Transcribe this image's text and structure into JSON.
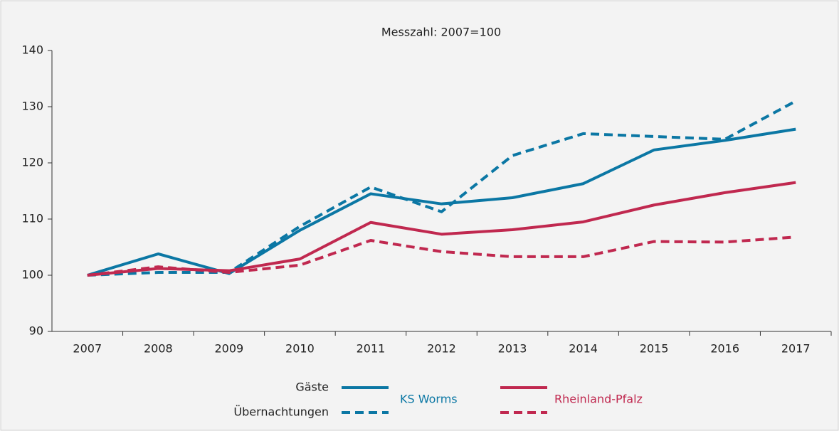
{
  "chart_data": {
    "type": "line",
    "title": "Messzahl: 2007=100",
    "categories": [
      "2007",
      "2008",
      "2009",
      "2010",
      "2011",
      "2012",
      "2013",
      "2014",
      "2015",
      "2016",
      "2017"
    ],
    "ylim": [
      90,
      140
    ],
    "yticks": [
      90,
      100,
      110,
      120,
      130,
      140
    ],
    "grid": false,
    "legend": {
      "rows": [
        "Gäste",
        "Übernachtungen"
      ],
      "groups": [
        {
          "name": "KS Worms",
          "color": "#0b77a4"
        },
        {
          "name": "Rheinland-Pfalz",
          "color": "#c0284f"
        }
      ]
    },
    "series": [
      {
        "group": 0,
        "row": 0,
        "dashed": false,
        "color": "#0b77a4",
        "values": [
          100,
          103.8,
          100.3,
          108,
          114.5,
          112.7,
          113.8,
          116.3,
          122.3,
          124,
          126
        ]
      },
      {
        "group": 0,
        "row": 1,
        "dashed": true,
        "color": "#0b77a4",
        "values": [
          100,
          100.5,
          100.5,
          108.7,
          115.7,
          111.3,
          121.3,
          125.2,
          124.7,
          124.2,
          131
        ]
      },
      {
        "group": 1,
        "row": 0,
        "dashed": false,
        "color": "#c0284f",
        "values": [
          100,
          101.2,
          100.8,
          102.9,
          109.4,
          107.3,
          108.1,
          109.5,
          112.5,
          114.7,
          116.5
        ]
      },
      {
        "group": 1,
        "row": 1,
        "dashed": true,
        "color": "#c0284f",
        "values": [
          100,
          101.5,
          100.5,
          101.8,
          106.2,
          104.2,
          103.3,
          103.3,
          106,
          105.9,
          106.8
        ]
      }
    ]
  }
}
